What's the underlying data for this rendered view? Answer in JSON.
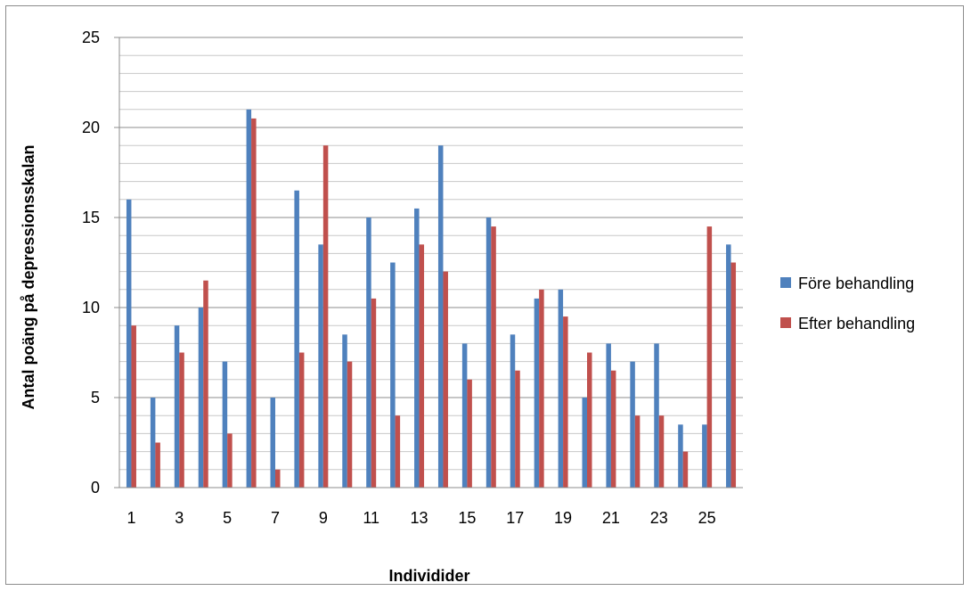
{
  "chart_data": {
    "type": "bar",
    "title": "",
    "xlabel": "Individider",
    "ylabel": "Antal poäng på depressionsskalan",
    "ylim": [
      0,
      25
    ],
    "y_ticks": [
      "0",
      "5",
      "10",
      "15",
      "20",
      "25"
    ],
    "grid": "horizontal major and minor",
    "legend_position": "right",
    "categories": [
      "1",
      "2",
      "3",
      "4",
      "5",
      "6",
      "7",
      "8",
      "9",
      "10",
      "11",
      "12",
      "13",
      "14",
      "15",
      "16",
      "17",
      "18",
      "19",
      "20",
      "21",
      "22",
      "23",
      "24",
      "25",
      "26"
    ],
    "x_tick_labels": [
      "1",
      "",
      "3",
      "",
      "5",
      "",
      "7",
      "",
      "9",
      "",
      "11",
      "",
      "13",
      "",
      "15",
      "",
      "17",
      "",
      "19",
      "",
      "21",
      "",
      "23",
      "",
      "25",
      ""
    ],
    "series": [
      {
        "name": "Före behandling",
        "color": "#4f81bd",
        "values": [
          16,
          5,
          9,
          10,
          7,
          21,
          5,
          16.5,
          13.5,
          8.5,
          15,
          12.5,
          15.5,
          19,
          8,
          15,
          8.5,
          10.5,
          11,
          5,
          8,
          7,
          8,
          3.5,
          3.5,
          13.5
        ]
      },
      {
        "name": "Efter behandling",
        "color": "#c0504d",
        "values": [
          9,
          2.5,
          7.5,
          11.5,
          3,
          20.5,
          1,
          7.5,
          19,
          7,
          10.5,
          4,
          13.5,
          12,
          6,
          14.5,
          6.5,
          11,
          9.5,
          7.5,
          6.5,
          4,
          4,
          2,
          14.5,
          12.5
        ]
      }
    ]
  }
}
